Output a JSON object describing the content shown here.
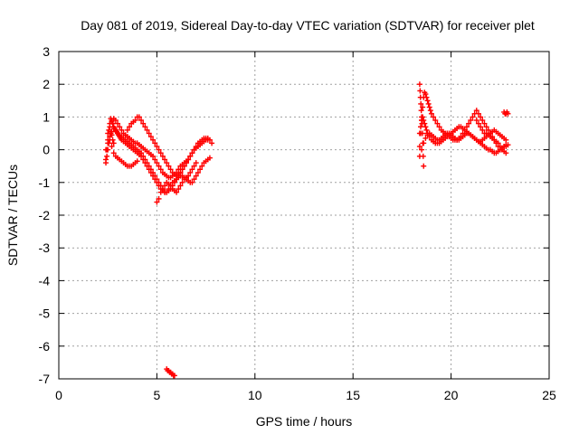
{
  "chart_data": {
    "type": "scatter",
    "title": "Day 081 of 2019, Sidereal Day-to-day VTEC variation (SDTVAR) for receiver plet",
    "xlabel": "GPS time / hours",
    "ylabel": "SDTVAR / TECUs",
    "xlim": [
      0,
      25
    ],
    "ylim": [
      -7,
      3
    ],
    "xticks": [
      "0",
      "5",
      "10",
      "15",
      "20",
      "25"
    ],
    "yticks": [
      "-7",
      "-6",
      "-5",
      "-4",
      "-3",
      "-2",
      "-1",
      "0",
      "1",
      "2",
      "3"
    ],
    "grid": true,
    "marker": "plus",
    "color": "#ff0000",
    "series": [
      {
        "name": "",
        "x": [
          2.4,
          2.45,
          2.5,
          2.55,
          2.6,
          2.65,
          2.7,
          2.75,
          2.8,
          2.85,
          2.9,
          2.95,
          3.0,
          3.05,
          3.1,
          3.15,
          3.2,
          3.3,
          3.4,
          3.5,
          3.6,
          3.7,
          3.8,
          3.9,
          4.0,
          4.1,
          4.2,
          4.3,
          4.4,
          4.5,
          4.6,
          4.7,
          4.8,
          4.9,
          5.0,
          5.1,
          5.2,
          5.3,
          5.4,
          5.5,
          5.6,
          5.7,
          5.8,
          5.9,
          6.0,
          6.1,
          6.2,
          6.3,
          6.4,
          6.5,
          6.6,
          6.7,
          6.8,
          6.9,
          7.0,
          7.1,
          7.2,
          7.3,
          7.4,
          7.5,
          7.6,
          2.4,
          2.5,
          2.6,
          2.7,
          2.8,
          2.9,
          3.0,
          3.1,
          3.2,
          3.3,
          3.4,
          3.5,
          3.6,
          3.7,
          3.8,
          3.9,
          4.0,
          4.1,
          4.2,
          4.3,
          4.4,
          4.5,
          4.6,
          4.7,
          4.8,
          4.9,
          5.0,
          5.1,
          5.2,
          5.3,
          5.4,
          5.5,
          5.6,
          5.7,
          5.8,
          5.9,
          6.0,
          6.1,
          6.2,
          6.3,
          6.4,
          6.5,
          6.6,
          6.7,
          6.8,
          6.9,
          7.0,
          7.1,
          7.2,
          7.3,
          7.4,
          7.5,
          7.6,
          7.7,
          2.5,
          2.6,
          2.7,
          2.8,
          2.9,
          3.0,
          3.1,
          3.2,
          3.3,
          3.4,
          3.5,
          3.6,
          3.7,
          3.8,
          3.9,
          4.0,
          4.1,
          4.2,
          4.3,
          4.4,
          4.5,
          4.6,
          4.7,
          4.8,
          4.9,
          5.0,
          5.1,
          5.2,
          5.3,
          5.4,
          5.5,
          5.6,
          5.7,
          5.8,
          5.9,
          6.0,
          6.1,
          6.2,
          6.3,
          6.4,
          6.5,
          2.6,
          2.7,
          2.8,
          2.9,
          3.0,
          3.1,
          3.2,
          3.3,
          3.4,
          3.5,
          3.6,
          3.7,
          3.8,
          3.9,
          4.0,
          3.5,
          3.6,
          3.7,
          3.8,
          3.9,
          4.0,
          4.1,
          4.2,
          4.3,
          4.4,
          4.5,
          4.6,
          4.7,
          4.8,
          4.9,
          5.0,
          5.1,
          5.2,
          5.3,
          5.4,
          5.5,
          5.6,
          5.7,
          5.8,
          5.9,
          6.0,
          6.1,
          6.2,
          6.3,
          6.4,
          6.5,
          6.6,
          6.7,
          6.8,
          6.9,
          7.0,
          7.1,
          7.2,
          7.3,
          7.4,
          7.5,
          7.6,
          7.7,
          7.8,
          2.4,
          2.45,
          2.5,
          2.55,
          2.6,
          2.65,
          2.7,
          2.75,
          2.8,
          5.0,
          5.1,
          5.2,
          5.3,
          5.4,
          5.5,
          5.6,
          5.7,
          5.8,
          5.9,
          6.0,
          6.1,
          6.2,
          6.3,
          6.4,
          6.5,
          6.6,
          6.7,
          6.8,
          6.9,
          7.0,
          5.5,
          5.55,
          5.6,
          5.65,
          5.7,
          5.75,
          5.8,
          5.85,
          5.9,
          18.4,
          18.45,
          18.5,
          18.55,
          18.6,
          18.65,
          18.7,
          18.75,
          18.8,
          18.85,
          18.9,
          18.95,
          19.0,
          19.1,
          19.2,
          19.3,
          19.4,
          19.5,
          19.6,
          19.7,
          19.8,
          19.9,
          20.0,
          20.1,
          20.2,
          20.3,
          20.4,
          20.5,
          20.6,
          20.7,
          20.8,
          20.9,
          21.0,
          21.1,
          21.2,
          21.3,
          21.4,
          21.5,
          21.6,
          21.7,
          21.8,
          21.9,
          22.0,
          22.1,
          22.2,
          22.3,
          22.4,
          22.5,
          22.6,
          22.7,
          22.8,
          18.4,
          18.45,
          18.5,
          18.55,
          18.6,
          18.65,
          18.7,
          18.75,
          18.8,
          18.9,
          19.0,
          19.1,
          19.2,
          19.3,
          19.4,
          19.5,
          19.6,
          19.7,
          19.8,
          19.9,
          20.0,
          20.1,
          20.2,
          20.3,
          20.4,
          20.5,
          20.6,
          20.7,
          20.8,
          20.9,
          21.0,
          21.1,
          21.2,
          21.3,
          21.4,
          21.5,
          21.6,
          21.7,
          21.8,
          21.9,
          22.0,
          22.1,
          22.2,
          22.3,
          22.4,
          22.5,
          22.6,
          22.7,
          22.8,
          22.9,
          18.4,
          18.5,
          18.6,
          18.7,
          18.8,
          18.9,
          19.0,
          19.1,
          19.2,
          19.3,
          19.4,
          19.5,
          19.6,
          19.7,
          19.8,
          19.9,
          20.0,
          20.1,
          20.2,
          20.3,
          20.4,
          20.5,
          20.6,
          20.7,
          20.8,
          20.9,
          21.0,
          21.1,
          21.2,
          21.3,
          21.4,
          21.5,
          21.6,
          21.7,
          21.8,
          21.9,
          22.0,
          22.1,
          22.2,
          22.3,
          22.4,
          22.5,
          22.6,
          22.7,
          22.8,
          18.4,
          18.42,
          18.44,
          18.46,
          18.48,
          18.5,
          18.52,
          18.54,
          18.56,
          18.58,
          18.6,
          21.3,
          21.4,
          21.5,
          21.6,
          21.7,
          21.8,
          21.9,
          22.0,
          22.1,
          22.2,
          22.3,
          22.4,
          22.5,
          22.6,
          22.7,
          22.8,
          22.7,
          22.75,
          22.8,
          22.85,
          22.9
        ],
        "y": [
          -0.3,
          0.0,
          0.3,
          0.6,
          0.8,
          0.95,
          0.9,
          0.8,
          0.7,
          0.65,
          0.6,
          0.55,
          0.5,
          0.45,
          0.4,
          0.35,
          0.3,
          0.25,
          0.2,
          0.15,
          0.1,
          0.05,
          0.0,
          -0.05,
          -0.1,
          -0.15,
          -0.2,
          -0.3,
          -0.4,
          -0.5,
          -0.6,
          -0.7,
          -0.8,
          -0.9,
          -1.0,
          -1.1,
          -1.2,
          -1.25,
          -1.3,
          -1.3,
          -1.25,
          -1.2,
          -1.1,
          -1.0,
          -0.9,
          -0.8,
          -0.7,
          -0.6,
          -0.5,
          -0.4,
          -0.3,
          -0.2,
          -0.1,
          0.0,
          0.1,
          0.2,
          0.25,
          0.3,
          0.35,
          0.35,
          0.3,
          0.0,
          0.2,
          0.4,
          0.55,
          0.65,
          0.6,
          0.5,
          0.45,
          0.4,
          0.35,
          0.3,
          0.25,
          0.2,
          0.15,
          0.1,
          0.05,
          0.0,
          -0.05,
          -0.1,
          -0.2,
          -0.3,
          -0.4,
          -0.5,
          -0.6,
          -0.7,
          -0.8,
          -0.9,
          -1.0,
          -1.1,
          -1.2,
          -1.3,
          -1.3,
          -1.2,
          -1.1,
          -1.0,
          -0.95,
          -0.9,
          -0.85,
          -0.8,
          -0.8,
          -0.85,
          -0.9,
          -0.95,
          -1.0,
          -1.0,
          -0.9,
          -0.8,
          -0.7,
          -0.6,
          -0.5,
          -0.4,
          -0.35,
          -0.3,
          -0.25,
          0.5,
          0.7,
          0.85,
          0.95,
          0.9,
          0.8,
          0.7,
          0.6,
          0.5,
          0.45,
          0.4,
          0.35,
          0.3,
          0.25,
          0.2,
          0.2,
          0.15,
          0.1,
          0.05,
          0.0,
          -0.05,
          -0.1,
          -0.15,
          -0.2,
          -0.3,
          -0.4,
          -0.5,
          -0.6,
          -0.7,
          -0.75,
          -0.8,
          -0.85,
          -0.85,
          -0.8,
          -0.75,
          -0.7,
          -0.6,
          -0.5,
          -0.45,
          -0.4,
          -0.35,
          0.3,
          0.1,
          -0.1,
          -0.2,
          -0.25,
          -0.3,
          -0.35,
          -0.4,
          -0.45,
          -0.5,
          -0.5,
          -0.5,
          -0.45,
          -0.4,
          -0.35,
          0.6,
          0.7,
          0.8,
          0.85,
          0.9,
          1.0,
          1.0,
          0.9,
          0.8,
          0.7,
          0.6,
          0.5,
          0.4,
          0.3,
          0.2,
          0.1,
          0.0,
          -0.1,
          -0.2,
          -0.3,
          -0.4,
          -0.5,
          -0.6,
          -0.7,
          -0.75,
          -0.8,
          -0.75,
          -0.7,
          -0.6,
          -0.5,
          -0.4,
          -0.3,
          -0.2,
          -0.1,
          0.0,
          0.05,
          0.1,
          0.15,
          0.2,
          0.25,
          0.3,
          0.35,
          0.3,
          0.2,
          -0.4,
          -0.2,
          0.0,
          0.2,
          0.4,
          0.5,
          0.45,
          0.3,
          0.2,
          -1.6,
          -1.5,
          -1.3,
          -1.2,
          -1.1,
          -1.0,
          -1.05,
          -1.1,
          -1.2,
          -1.25,
          -1.3,
          -1.2,
          -1.1,
          -1.0,
          -0.9,
          -0.85,
          -0.8,
          -0.7,
          -0.6,
          -0.5,
          -0.4,
          -6.7,
          -6.75,
          -6.75,
          -6.8,
          -6.8,
          -6.85,
          -6.85,
          -6.9,
          -6.9,
          0.1,
          0.5,
          0.9,
          1.3,
          1.6,
          1.75,
          1.7,
          1.6,
          1.5,
          1.4,
          1.3,
          1.2,
          1.1,
          1.0,
          0.9,
          0.8,
          0.7,
          0.6,
          0.55,
          0.5,
          0.45,
          0.4,
          0.35,
          0.3,
          0.3,
          0.3,
          0.35,
          0.4,
          0.5,
          0.6,
          0.7,
          0.8,
          0.9,
          1.0,
          1.1,
          1.2,
          1.1,
          1.0,
          0.9,
          0.8,
          0.7,
          0.6,
          0.5,
          0.4,
          0.3,
          0.2,
          0.1,
          0.0,
          0.05,
          0.1,
          0.15,
          0.5,
          0.7,
          0.9,
          1.0,
          0.9,
          0.8,
          0.7,
          0.6,
          0.5,
          0.4,
          0.3,
          0.25,
          0.2,
          0.2,
          0.2,
          0.25,
          0.3,
          0.35,
          0.4,
          0.45,
          0.5,
          0.55,
          0.6,
          0.65,
          0.7,
          0.7,
          0.65,
          0.6,
          0.55,
          0.5,
          0.45,
          0.4,
          0.35,
          0.3,
          0.25,
          0.2,
          0.15,
          0.1,
          0.05,
          0.0,
          0.0,
          -0.05,
          -0.1,
          -0.1,
          -0.05,
          0.0,
          0.05,
          0.1,
          0.1,
          0.15,
          -0.2,
          0.0,
          0.2,
          0.35,
          0.45,
          0.5,
          0.45,
          0.4,
          0.35,
          0.3,
          0.3,
          0.35,
          0.4,
          0.45,
          0.5,
          0.5,
          0.45,
          0.4,
          0.35,
          0.3,
          0.3,
          0.35,
          0.4,
          0.45,
          0.5,
          0.5,
          0.45,
          0.4,
          0.35,
          0.3,
          0.25,
          0.25,
          0.3,
          0.35,
          0.4,
          0.45,
          0.5,
          0.55,
          0.6,
          0.55,
          0.5,
          0.45,
          0.4,
          0.35,
          0.3,
          2.0,
          1.8,
          1.6,
          1.4,
          1.2,
          1.0,
          0.8,
          0.5,
          0.2,
          -0.2,
          -0.5,
          0.9,
          0.8,
          0.7,
          0.6,
          0.5,
          0.5,
          0.45,
          0.4,
          0.35,
          0.3,
          0.25,
          0.2,
          0.1,
          0.0,
          -0.05,
          -0.1,
          1.15,
          1.1,
          1.1,
          1.15,
          1.1
        ]
      }
    ]
  }
}
